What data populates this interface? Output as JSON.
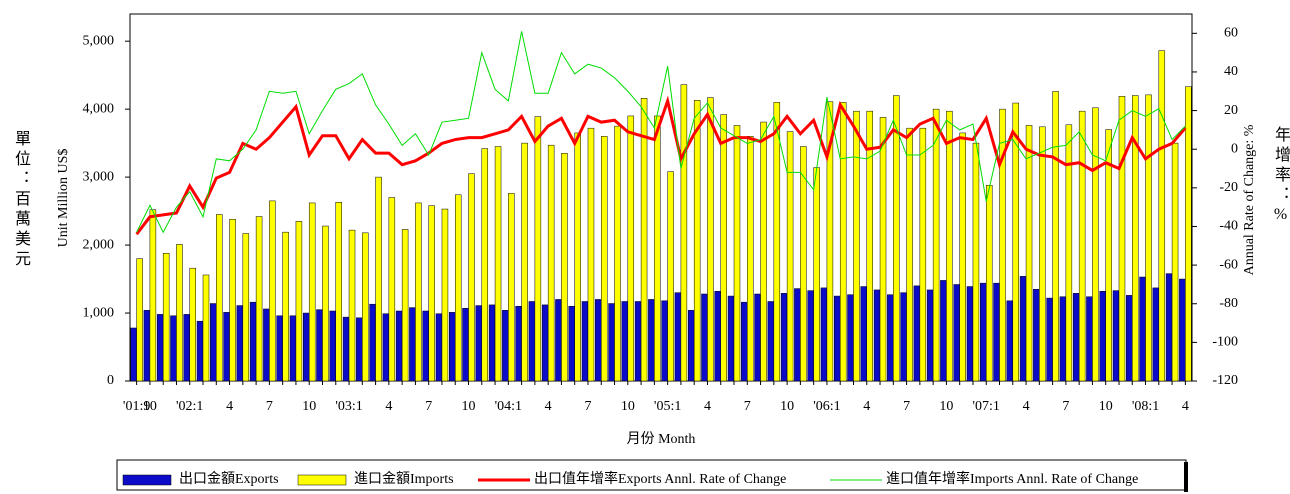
{
  "chart_data": {
    "type": "bar_line",
    "y_label_zh": "單位：百萬美元",
    "y_label": "Unit Million US$",
    "y2_label": "Annual Rate of Change: %",
    "y2_label_zh": "年增率：%",
    "x_label": "月份 Month",
    "categories": [
      "'01:9",
      "10",
      null,
      null,
      "'02:1",
      null,
      null,
      "4",
      null,
      null,
      "7",
      null,
      null,
      "10",
      null,
      null,
      "'03:1",
      null,
      null,
      "4",
      null,
      null,
      "7",
      null,
      null,
      "10",
      null,
      null,
      "'04:1",
      null,
      null,
      "4",
      null,
      null,
      "7",
      null,
      null,
      "10",
      null,
      null,
      "'05:1",
      null,
      null,
      "4",
      null,
      null,
      "7",
      null,
      null,
      "10",
      null,
      null,
      "'06:1",
      null,
      null,
      "4",
      null,
      null,
      "7",
      null,
      null,
      "10",
      null,
      null,
      "'07:1",
      null,
      null,
      "4",
      null,
      null,
      "7",
      null,
      null,
      "10",
      null,
      null,
      "'08:1",
      null,
      null,
      "4"
    ],
    "ylim": [
      0,
      5400
    ],
    "yticks": [
      0,
      {
        "value": 1000,
        "label": "1,000"
      },
      {
        "value": 2000,
        "label": "2,000"
      },
      {
        "value": 3000,
        "label": "3,000"
      },
      {
        "value": 4000,
        "label": "4,000"
      },
      {
        "value": 5000,
        "label": "5,000"
      }
    ],
    "y2lim": [
      -120,
      70
    ],
    "y2ticks": [
      -120,
      -100,
      -80,
      -60,
      -40,
      -20,
      0,
      20,
      40,
      60
    ],
    "series": [
      {
        "name": "出口金額Exports",
        "kind": "bar",
        "color": "#0c0cc8",
        "values": [
          780,
          1040,
          980,
          960,
          980,
          880,
          1140,
          1010,
          1110,
          1160,
          1060,
          960,
          960,
          1000,
          1050,
          1030,
          940,
          930,
          1130,
          990,
          1030,
          1080,
          1030,
          990,
          1010,
          1070,
          1110,
          1120,
          1040,
          1100,
          1170,
          1120,
          1200,
          1100,
          1170,
          1200,
          1140,
          1170,
          1170,
          1200,
          1180,
          1300,
          1040,
          1280,
          1320,
          1250,
          1160,
          1280,
          1170,
          1290,
          1360,
          1330,
          1370,
          1250,
          1270,
          1390,
          1340,
          1270,
          1300,
          1400,
          1340,
          1480,
          1420,
          1390,
          1440,
          1440,
          1180,
          1540,
          1350,
          1220,
          1240,
          1290,
          1240,
          1320,
          1330,
          1260,
          1530,
          1370,
          1580,
          1500
        ]
      },
      {
        "name": "進口金額Imports",
        "kind": "bar",
        "color": "#ffff00",
        "values": [
          1800,
          2520,
          1880,
          2010,
          1660,
          1560,
          2450,
          2380,
          2170,
          2420,
          2650,
          2190,
          2350,
          2620,
          2280,
          2630,
          2220,
          2180,
          3000,
          2700,
          2230,
          2620,
          2580,
          2530,
          2740,
          3050,
          3420,
          3450,
          2760,
          3500,
          3890,
          3470,
          3350,
          3650,
          3720,
          3600,
          3750,
          3900,
          4160,
          3900,
          3080,
          4360,
          4130,
          4170,
          3920,
          3760,
          3600,
          3810,
          4100,
          3670,
          3450,
          3140,
          4110,
          4100,
          3970,
          3970,
          3880,
          4200,
          3720,
          3720,
          4000,
          3970,
          3650,
          3500,
          2880,
          4000,
          4090,
          3760,
          3740,
          4260,
          3770,
          3970,
          4020,
          3700,
          4190,
          4200,
          4210,
          4860,
          3500,
          4330
        ]
      },
      {
        "name": "出口值年增率Exports Annl. Rate of Change",
        "kind": "line",
        "axis": "y2",
        "color": "#ff0000",
        "values": [
          -44,
          -35,
          -34,
          -33,
          -19,
          -30,
          -15,
          -12,
          3,
          0,
          6,
          14,
          22,
          -3,
          7,
          7,
          -5,
          5,
          -2,
          -2,
          -8,
          -6,
          -2,
          3,
          5,
          6,
          6,
          8,
          10,
          17,
          4,
          12,
          16,
          3,
          17,
          14,
          15,
          9,
          7,
          5,
          25,
          -5,
          8,
          18,
          3,
          6,
          6,
          4,
          8,
          17,
          8,
          15,
          -4,
          23,
          12,
          0,
          1,
          10,
          6,
          13,
          16,
          3,
          6,
          5,
          16,
          -8,
          9,
          0,
          -3,
          -4,
          -8,
          -7,
          -11,
          -7,
          -10,
          6,
          -5,
          0,
          3,
          11
        ]
      },
      {
        "name": "進口值年增率Imports Annl. Rate of Change",
        "kind": "line",
        "axis": "y2",
        "color": "#00dd00",
        "values": [
          -43,
          -29,
          -43,
          -30,
          -22,
          -35,
          -5,
          -6,
          0,
          10,
          30,
          29,
          30,
          8,
          20,
          31,
          34,
          39,
          23,
          13,
          2,
          8,
          -3,
          14,
          15,
          16,
          50,
          31,
          25,
          61,
          29,
          29,
          50,
          39,
          44,
          42,
          37,
          30,
          22,
          11,
          43,
          -10,
          16,
          24,
          11,
          7,
          3,
          5,
          17,
          -12,
          -12,
          -21,
          27,
          -5,
          -4,
          -5,
          -1,
          15,
          -3,
          -3,
          2,
          15,
          10,
          13,
          -27,
          3,
          5,
          -5,
          -2,
          1,
          2,
          9,
          -3,
          -6,
          15,
          20,
          17,
          21,
          5,
          12
        ]
      }
    ]
  }
}
